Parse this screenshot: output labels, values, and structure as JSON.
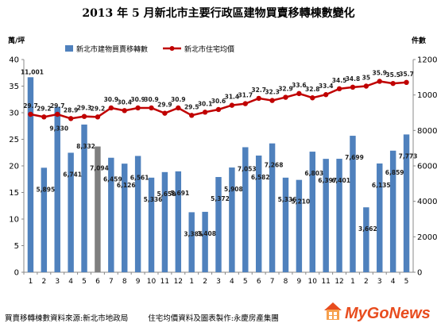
{
  "chart_data": {
    "type": "bar+line",
    "title": "2013 年 5 月新北市主要行政區建物買賣移轉棟數變化",
    "ylabel_left": "萬/坪",
    "ylabel_right": "件數",
    "categories": [
      "1",
      "2",
      "3",
      "4",
      "5",
      "6",
      "7",
      "8",
      "9",
      "10",
      "11",
      "12",
      "1",
      "2",
      "3",
      "4",
      "5",
      "6",
      "7",
      "8",
      "9",
      "10",
      "11",
      "12",
      "1",
      "2",
      "3",
      "4",
      "5"
    ],
    "bar_series": {
      "name": "新北市建物買賣移轉數",
      "axis": "right",
      "values": [
        11001,
        5895,
        9330,
        6741,
        8332,
        7094,
        6459,
        6126,
        6561,
        5336,
        5650,
        5691,
        3385,
        3408,
        5372,
        5908,
        7053,
        6582,
        7268,
        5336,
        5210,
        6803,
        6397,
        6401,
        7699,
        3662,
        6135,
        6859,
        7773
      ],
      "labels": [
        "11,001",
        "5,895",
        "9,330",
        "6,741",
        "8,332",
        "7,094",
        "6,459",
        "6,126",
        "6,561",
        "5,336",
        "5,650",
        "5,691",
        "3,385",
        "3,408",
        "5,372",
        "5,908",
        "7,053",
        "6,582",
        "7,268",
        "5,336",
        "5,210",
        "6,803",
        "6,397",
        "6,401",
        "7,699",
        "3,662",
        "6,135",
        "6,859",
        "7,773"
      ],
      "highlight_index": 5
    },
    "line_series": {
      "name": "新北市住宅均價",
      "axis": "left",
      "values": [
        29.7,
        29.2,
        29.7,
        28.9,
        29.3,
        29.2,
        30.9,
        30.4,
        30.9,
        30.9,
        29.9,
        30.9,
        29.5,
        30.1,
        30.6,
        31.4,
        31.7,
        32.7,
        32.3,
        32.9,
        33.6,
        32.8,
        33.4,
        34.5,
        34.8,
        35,
        35.9,
        35.5,
        35.7
      ],
      "labels": [
        "29.7",
        "29.2",
        "29.7",
        "28.9",
        "29.3",
        "29.2",
        "30.9",
        "30.4",
        "30.9",
        "30.9",
        "29.9",
        "30.9",
        "29.5",
        "30.1",
        "30.6",
        "31.4",
        "31.7",
        "32.7",
        "32.3",
        "32.9",
        "33.6",
        "32.8",
        "33.4",
        "34.5",
        "34.8",
        "35",
        "35.9",
        "35.5",
        "35.7"
      ]
    },
    "ylim_left": [
      0,
      40
    ],
    "yticks_left": [
      "0",
      "5",
      "10",
      "15",
      "20",
      "25",
      "30",
      "35",
      "40"
    ],
    "ylim_right": [
      0,
      12000
    ],
    "yticks_right": [
      "0",
      "2000",
      "4000",
      "6000",
      "8000",
      "10000",
      "12000"
    ],
    "grid": false,
    "legend_position": "top",
    "colors": {
      "bar": "#4f81bd",
      "bar_highlight": "#7f7f7f",
      "line": "#c00000"
    }
  },
  "footer": {
    "source_left": "買賣移轉棟數資料來源:新北市地政局",
    "source_right": "住宅均價資料及圖表製作:永慶房產集團"
  },
  "watermark": {
    "text": "MyGoNews",
    "colors": {
      "text": "#e84c1e"
    }
  }
}
